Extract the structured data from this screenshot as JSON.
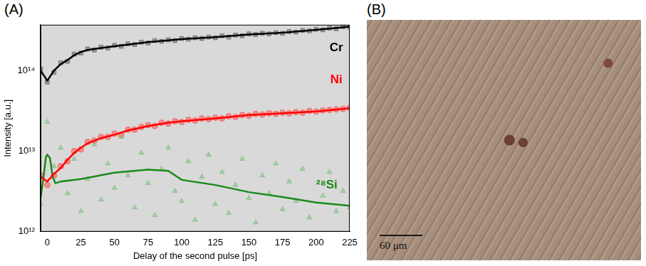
{
  "chart_data": {
    "type": "scatter",
    "panel": "(A)",
    "x_label": "Delay of the second pulse [ps]",
    "y_label": "Intensity [a.u.]",
    "xlim": [
      -5,
      225
    ],
    "xticks": [
      0,
      25,
      50,
      75,
      100,
      125,
      150,
      175,
      200,
      225
    ],
    "ylim": [
      1000000000000.0,
      370000000000000.0
    ],
    "yticks": [
      {
        "value": 1000000000000.0,
        "label": "10¹²"
      },
      {
        "value": 10000000000000.0,
        "label": "10¹³"
      },
      {
        "value": 100000000000000.0,
        "label": "10¹⁴"
      }
    ],
    "log": "y",
    "grid": false,
    "series": [
      {
        "type": "scatter",
        "marker": "triangle",
        "color": "#7fbf7f",
        "x": [
          -5,
          0,
          5,
          10,
          15,
          20,
          25,
          30,
          35,
          40,
          45,
          50,
          55,
          60,
          65,
          70,
          75,
          80,
          85,
          90,
          95,
          100,
          105,
          110,
          115,
          120,
          125,
          130,
          135,
          140,
          145,
          150,
          155,
          160,
          165,
          170,
          175,
          180,
          185,
          190,
          195,
          200,
          205,
          210,
          215,
          220,
          225
        ],
        "values": [
          2200000000000.0,
          23000000000000.0,
          6500000000000.0,
          11000000000000.0,
          3000000000000.0,
          8000000000000.0,
          1800000000000.0,
          4500000000000.0,
          12000000000000.0,
          2500000000000.0,
          7000000000000.0,
          3500000000000.0,
          15000000000000.0,
          5000000000000.0,
          2000000000000.0,
          9500000000000.0,
          4000000000000.0,
          1600000000000.0,
          6000000000000.0,
          11000000000000.0,
          3200000000000.0,
          2400000000000.0,
          7500000000000.0,
          1400000000000.0,
          4800000000000.0,
          9000000000000.0,
          2200000000000.0,
          5500000000000.0,
          1700000000000.0,
          3800000000000.0,
          8000000000000.0,
          2600000000000.0,
          1300000000000.0,
          5000000000000.0,
          3000000000000.0,
          7000000000000.0,
          1900000000000.0,
          4200000000000.0,
          2400000000000.0,
          6000000000000.0,
          1500000000000.0,
          3500000000000.0,
          2800000000000.0,
          5500000000000.0,
          1800000000000.0,
          3200000000000.0,
          2000000000000.0
        ]
      },
      {
        "type": "scatter",
        "marker": "square",
        "color": "#666666",
        "x": [
          -5,
          0,
          5,
          10,
          15,
          20,
          25,
          30,
          35,
          40,
          45,
          50,
          55,
          60,
          65,
          70,
          75,
          80,
          85,
          90,
          95,
          100,
          105,
          110,
          115,
          120,
          125,
          130,
          135,
          140,
          145,
          150,
          155,
          160,
          165,
          170,
          175,
          180,
          185,
          190,
          195,
          200,
          205,
          210,
          215,
          220,
          225
        ],
        "values": [
          105000000000000.0,
          72000000000000.0,
          95000000000000.0,
          125000000000000.0,
          130000000000000.0,
          160000000000000.0,
          165000000000000.0,
          185000000000000.0,
          180000000000000.0,
          195000000000000.0,
          190000000000000.0,
          205000000000000.0,
          200000000000000.0,
          215000000000000.0,
          210000000000000.0,
          225000000000000.0,
          220000000000000.0,
          235000000000000.0,
          230000000000000.0,
          240000000000000.0,
          235000000000000.0,
          250000000000000.0,
          245000000000000.0,
          255000000000000.0,
          250000000000000.0,
          260000000000000.0,
          255000000000000.0,
          270000000000000.0,
          260000000000000.0,
          275000000000000.0,
          270000000000000.0,
          285000000000000.0,
          280000000000000.0,
          290000000000000.0,
          285000000000000.0,
          295000000000000.0,
          290000000000000.0,
          305000000000000.0,
          300000000000000.0,
          315000000000000.0,
          310000000000000.0,
          325000000000000.0,
          320000000000000.0,
          335000000000000.0,
          330000000000000.0,
          350000000000000.0,
          345000000000000.0
        ]
      },
      {
        "type": "scatter",
        "marker": "circle",
        "color": "#ff5050",
        "x": [
          -5,
          0,
          5,
          10,
          15,
          20,
          25,
          30,
          35,
          40,
          45,
          50,
          55,
          60,
          65,
          70,
          75,
          80,
          85,
          90,
          95,
          100,
          105,
          110,
          115,
          120,
          125,
          130,
          135,
          140,
          145,
          150,
          155,
          160,
          165,
          170,
          175,
          180,
          185,
          190,
          195,
          200,
          205,
          210,
          215,
          220,
          225
        ],
        "values": [
          5000000000000.0,
          3800000000000.0,
          5000000000000.0,
          6500000000000.0,
          7500000000000.0,
          10000000000000.0,
          10500000000000.0,
          13000000000000.0,
          13500000000000.0,
          15000000000000.0,
          15000000000000.0,
          16500000000000.0,
          16000000000000.0,
          18500000000000.0,
          18500000000000.0,
          20000000000000.0,
          21000000000000.0,
          20500000000000.0,
          22500000000000.0,
          22000000000000.0,
          23500000000000.0,
          23000000000000.0,
          24500000000000.0,
          24000000000000.0,
          25500000000000.0,
          25000000000000.0,
          26000000000000.0,
          25500000000000.0,
          27000000000000.0,
          26500000000000.0,
          28000000000000.0,
          27500000000000.0,
          29000000000000.0,
          28500000000000.0,
          29500000000000.0,
          29000000000000.0,
          30000000000000.0,
          29500000000000.0,
          30500000000000.0,
          30000000000000.0,
          31500000000000.0,
          31000000000000.0,
          32000000000000.0,
          32500000000000.0,
          33000000000000.0,
          33500000000000.0,
          34500000000000.0
        ]
      },
      {
        "type": "line",
        "color": "#000000",
        "x": [
          -5,
          0,
          5,
          10,
          15,
          20,
          25,
          30,
          40,
          50,
          60,
          75,
          90,
          100,
          125,
          150,
          175,
          200,
          225
        ],
        "values": [
          100000000000000.0,
          75000000000000.0,
          100000000000000.0,
          120000000000000.0,
          135000000000000.0,
          155000000000000.0,
          170000000000000.0,
          180000000000000.0,
          190000000000000.0,
          200000000000000.0,
          210000000000000.0,
          225000000000000.0,
          237000000000000.0,
          245000000000000.0,
          260000000000000.0,
          280000000000000.0,
          295000000000000.0,
          320000000000000.0,
          350000000000000.0
        ]
      },
      {
        "type": "line",
        "color": "#ff0000",
        "x": [
          -5,
          0,
          5,
          10,
          15,
          20,
          25,
          30,
          40,
          50,
          60,
          75,
          90,
          100,
          125,
          150,
          175,
          200,
          225
        ],
        "values": [
          4800000000000.0,
          4200000000000.0,
          5200000000000.0,
          6200000000000.0,
          7800000000000.0,
          9500000000000.0,
          11000000000000.0,
          12500000000000.0,
          14500000000000.0,
          16000000000000.0,
          18000000000000.0,
          20500000000000.0,
          22500000000000.0,
          23500000000000.0,
          25500000000000.0,
          28000000000000.0,
          29500000000000.0,
          31000000000000.0,
          34000000000000.0
        ]
      },
      {
        "type": "line",
        "color": "#1a8a1a",
        "x": [
          -5,
          -3,
          -1,
          0,
          2,
          4,
          6,
          10,
          25,
          50,
          75,
          90,
          100,
          125,
          150,
          175,
          200,
          225
        ],
        "values": [
          2600000000000.0,
          4500000000000.0,
          8500000000000.0,
          9000000000000.0,
          8200000000000.0,
          4800000000000.0,
          4000000000000.0,
          4200000000000.0,
          4500000000000.0,
          5400000000000.0,
          5900000000000.0,
          5700000000000.0,
          4400000000000.0,
          3800000000000.0,
          3100000000000.0,
          2700000000000.0,
          2300000000000.0,
          2100000000000.0
        ]
      }
    ],
    "annotations": [
      {
        "text": "Cr",
        "x": 215,
        "y": 190000000000000.0,
        "color": "#000000"
      },
      {
        "text": "Ni",
        "x": 215,
        "y": 77000000000000.0,
        "color": "#ff0000"
      },
      {
        "text": "²⁸Si",
        "x": 208,
        "y": 3800000000000.0,
        "color": "#1a8a1a"
      }
    ]
  },
  "image": {
    "panel": "(B)",
    "scale_bar": "60 μm"
  }
}
